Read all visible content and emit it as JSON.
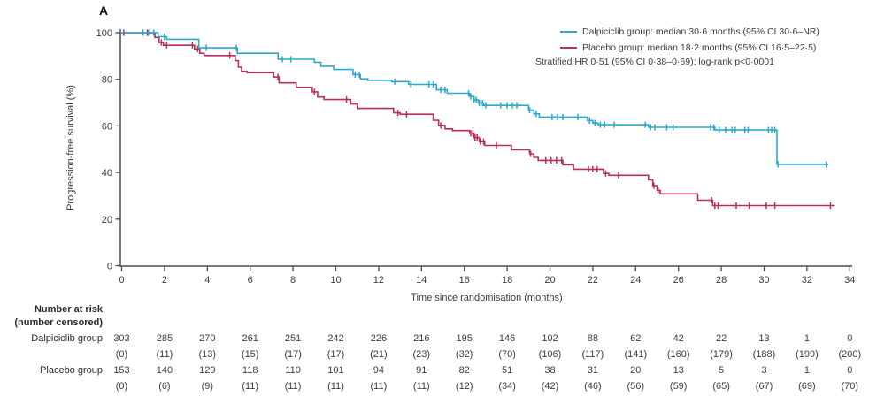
{
  "panel_label": "A",
  "colors": {
    "dalpiciclib": "#2CA9CE",
    "placebo": "#BB2D5D",
    "axis": "#4D4D4D",
    "text": "#3B3B3B"
  },
  "legend": {
    "entries": [
      {
        "series": "dalpiciclib",
        "label": "Dalpiciclib group: median 30·6 months (95% CI 30·6–NR)"
      },
      {
        "series": "placebo",
        "label": "Placebo group: median 18·2 months (95% CI 16·5–22·5)"
      }
    ],
    "stat_line": "Stratified HR 0·51 (95% CI 0·38–0·69); log-rank p<0·0001"
  },
  "chart_data": {
    "type": "line",
    "subtype": "kaplan-meier-step",
    "xlabel": "Time since randomisation (months)",
    "ylabel": "Progression-free survival (%)",
    "xlim": [
      0,
      34
    ],
    "ylim": [
      0,
      100
    ],
    "x_ticks": [
      0,
      2,
      4,
      6,
      8,
      10,
      12,
      14,
      16,
      18,
      20,
      22,
      24,
      26,
      28,
      30,
      32,
      34
    ],
    "y_ticks": [
      0,
      20,
      40,
      60,
      80,
      100
    ],
    "grid": false,
    "legend_position": "top-right",
    "series": [
      {
        "name": "Dalpiciclib group",
        "color_key": "dalpiciclib",
        "median_months": "30·6",
        "steps": [
          [
            1.7,
            98.3
          ],
          [
            2.1,
            97.2
          ],
          [
            3.6,
            93.5
          ],
          [
            5.4,
            91.2
          ],
          [
            7.3,
            88.6
          ],
          [
            9.0,
            87.3
          ],
          [
            9.3,
            85.6
          ],
          [
            9.9,
            84.2
          ],
          [
            10.8,
            82.0
          ],
          [
            11.15,
            80.2
          ],
          [
            11.5,
            79.6
          ],
          [
            12.6,
            79.0
          ],
          [
            13.4,
            77.8
          ],
          [
            14.7,
            75.5
          ],
          [
            15.2,
            74.0
          ],
          [
            16.25,
            72.6
          ],
          [
            16.45,
            71.2
          ],
          [
            16.65,
            69.8
          ],
          [
            16.9,
            68.8
          ],
          [
            19.0,
            66.8
          ],
          [
            19.25,
            65.2
          ],
          [
            19.5,
            63.8
          ],
          [
            21.75,
            62.3
          ],
          [
            22.0,
            61.2
          ],
          [
            22.25,
            60.5
          ],
          [
            24.6,
            59.4
          ],
          [
            27.7,
            58.2
          ],
          [
            30.6,
            43.5
          ]
        ],
        "end_time": 33.0,
        "censor_times": [
          1.0,
          1.25,
          1.5,
          2.0,
          3.95,
          5.35,
          7.5,
          7.9,
          10.9,
          11.1,
          12.75,
          13.5,
          14.35,
          14.55,
          14.9,
          15.1,
          16.2,
          16.3,
          16.45,
          16.55,
          16.7,
          16.85,
          17.0,
          17.7,
          18.0,
          18.25,
          18.45,
          19.05,
          19.35,
          20.1,
          20.35,
          20.6,
          21.3,
          21.85,
          22.1,
          22.35,
          22.55,
          23.0,
          24.45,
          24.7,
          24.9,
          25.45,
          25.75,
          27.5,
          27.65,
          27.9,
          28.2,
          28.5,
          28.65,
          29.1,
          29.25,
          30.2,
          30.35,
          30.5,
          30.65,
          32.9
        ]
      },
      {
        "name": "Placebo group",
        "color_key": "placebo",
        "median_months": "18·2",
        "steps": [
          [
            1.55,
            98.0
          ],
          [
            1.75,
            95.8
          ],
          [
            1.95,
            94.6
          ],
          [
            3.4,
            93.0
          ],
          [
            3.65,
            91.2
          ],
          [
            3.85,
            90.2
          ],
          [
            5.3,
            88.0
          ],
          [
            5.45,
            85.2
          ],
          [
            5.6,
            83.4
          ],
          [
            5.85,
            82.8
          ],
          [
            7.1,
            81.0
          ],
          [
            7.35,
            78.5
          ],
          [
            8.15,
            76.6
          ],
          [
            8.9,
            74.6
          ],
          [
            9.15,
            72.4
          ],
          [
            9.45,
            71.3
          ],
          [
            10.7,
            69.4
          ],
          [
            11.0,
            67.5
          ],
          [
            12.7,
            65.6
          ],
          [
            13.0,
            65.0
          ],
          [
            14.55,
            62.4
          ],
          [
            14.8,
            60.2
          ],
          [
            15.1,
            58.7
          ],
          [
            15.45,
            58.0
          ],
          [
            16.25,
            56.8
          ],
          [
            16.45,
            55.0
          ],
          [
            16.7,
            53.2
          ],
          [
            16.95,
            51.6
          ],
          [
            18.2,
            49.7
          ],
          [
            19.05,
            48.0
          ],
          [
            19.25,
            46.5
          ],
          [
            19.45,
            45.2
          ],
          [
            20.6,
            43.3
          ],
          [
            21.1,
            41.4
          ],
          [
            22.5,
            39.6
          ],
          [
            22.75,
            38.8
          ],
          [
            24.6,
            36.8
          ],
          [
            24.8,
            34.3
          ],
          [
            25.0,
            32.3
          ],
          [
            25.15,
            30.8
          ],
          [
            26.9,
            28.1
          ],
          [
            27.6,
            25.8
          ]
        ],
        "end_time": 33.3,
        "censor_times": [
          0.1,
          1.2,
          1.85,
          2.1,
          3.3,
          3.55,
          5.05,
          7.3,
          9.0,
          10.5,
          12.9,
          13.3,
          14.9,
          16.3,
          16.4,
          16.5,
          16.6,
          16.75,
          16.9,
          17.5,
          19.1,
          19.8,
          20.05,
          20.3,
          20.55,
          21.8,
          22.0,
          22.2,
          22.6,
          23.2,
          24.85,
          25.05,
          27.55,
          27.7,
          27.85,
          28.7,
          29.3,
          30.1,
          30.5,
          33.1
        ]
      }
    ]
  },
  "risk_table": {
    "header_line1": "Number at risk",
    "header_line2": "(number censored)",
    "times": [
      0,
      2,
      4,
      6,
      8,
      10,
      12,
      14,
      16,
      18,
      20,
      22,
      24,
      26,
      28,
      30,
      32,
      34
    ],
    "rows": [
      {
        "label": "Dalpiciclib group",
        "at_risk": [
          "303",
          "285",
          "270",
          "261",
          "251",
          "242",
          "226",
          "216",
          "195",
          "146",
          "102",
          "88",
          "62",
          "42",
          "22",
          "13",
          "1",
          "0"
        ],
        "censored": [
          "(0)",
          "(11)",
          "(13)",
          "(15)",
          "(17)",
          "(17)",
          "(21)",
          "(23)",
          "(32)",
          "(70)",
          "(106)",
          "(117)",
          "(141)",
          "(160)",
          "(179)",
          "(188)",
          "(199)",
          "(200)"
        ]
      },
      {
        "label": "Placebo group",
        "at_risk": [
          "153",
          "140",
          "129",
          "118",
          "110",
          "101",
          "94",
          "91",
          "82",
          "51",
          "38",
          "31",
          "20",
          "13",
          "5",
          "3",
          "1",
          "0"
        ],
        "censored": [
          "(0)",
          "(6)",
          "(9)",
          "(11)",
          "(11)",
          "(11)",
          "(11)",
          "(11)",
          "(12)",
          "(34)",
          "(42)",
          "(46)",
          "(56)",
          "(59)",
          "(65)",
          "(67)",
          "(69)",
          "(70)"
        ]
      }
    ]
  }
}
